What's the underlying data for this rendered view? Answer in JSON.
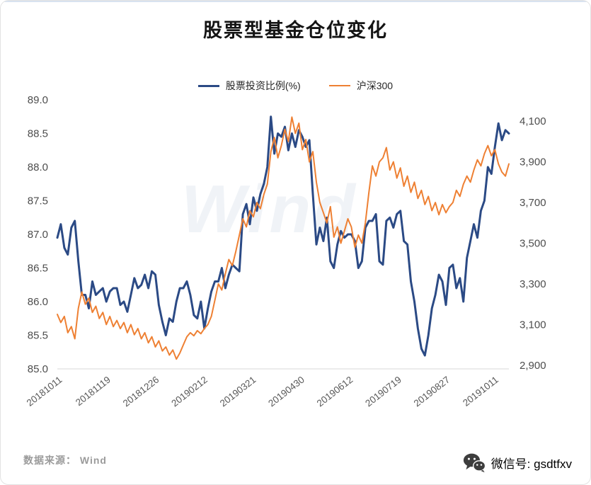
{
  "title": "股票型基金仓位变化",
  "watermark": "Wind",
  "footer": {
    "source_text": "数据来源： Wind"
  },
  "wechat": {
    "label": "微信号: gsdtfxv"
  },
  "chart_data": {
    "type": "line",
    "title": "股票型基金仓位变化",
    "xlabel": "",
    "legend_position": "top-center",
    "grid": false,
    "x_ticks": [
      "20181011",
      "20181119",
      "20181226",
      "20190212",
      "20190321",
      "20190430",
      "20190612",
      "20190719",
      "20190827",
      "20191011"
    ],
    "left_axis": {
      "label": "股票投资比例(%)",
      "min": 85.0,
      "max": 89.0,
      "ticks": [
        "89.0",
        "88.5",
        "88.0",
        "87.5",
        "87.0",
        "86.5",
        "86.0",
        "85.5",
        "85.0"
      ]
    },
    "right_axis": {
      "label": "沪深300",
      "min": 2882,
      "max": 4205,
      "ticks": [
        "4,100",
        "3,900",
        "3,700",
        "3,500",
        "3,300",
        "3,100",
        "2,900"
      ]
    },
    "series": [
      {
        "name": "股票投资比例(%)",
        "axis": "left",
        "color": "#2b4a85",
        "width": 3,
        "values": [
          86.95,
          87.15,
          86.8,
          86.7,
          87.1,
          87.2,
          86.6,
          86.1,
          86.1,
          85.9,
          86.3,
          86.1,
          86.15,
          86.2,
          86.0,
          86.15,
          86.2,
          86.2,
          85.95,
          86.0,
          85.85,
          86.1,
          86.35,
          86.2,
          86.25,
          86.4,
          86.2,
          86.45,
          86.4,
          85.95,
          85.7,
          85.5,
          85.75,
          85.7,
          86.0,
          86.2,
          86.2,
          86.3,
          86.1,
          85.8,
          85.75,
          86.0,
          85.6,
          85.9,
          86.15,
          86.3,
          86.3,
          86.5,
          86.2,
          86.4,
          86.55,
          86.5,
          86.45,
          87.3,
          87.45,
          87.15,
          87.55,
          87.35,
          87.6,
          87.75,
          88.0,
          88.75,
          88.2,
          88.5,
          88.45,
          88.6,
          88.25,
          88.5,
          88.3,
          88.55,
          88.45,
          88.3,
          88.4,
          87.6,
          86.85,
          87.1,
          86.9,
          87.25,
          86.6,
          86.5,
          86.85,
          87.05,
          86.95,
          87.0,
          87.0,
          86.9,
          86.5,
          86.6,
          87.1,
          87.2,
          87.2,
          87.3,
          86.6,
          86.55,
          87.2,
          87.25,
          87.1,
          87.3,
          87.35,
          86.9,
          86.85,
          86.3,
          86.0,
          85.6,
          85.3,
          85.2,
          85.5,
          85.9,
          86.1,
          86.4,
          86.3,
          85.95,
          86.5,
          86.55,
          86.2,
          86.35,
          86.0,
          86.65,
          86.9,
          87.15,
          86.95,
          87.35,
          87.5,
          88.0,
          87.9,
          88.3,
          88.65,
          88.4,
          88.55,
          88.5
        ]
      },
      {
        "name": "沪深300",
        "axis": "right",
        "color": "#ee8033",
        "width": 2,
        "values": [
          3150,
          3110,
          3140,
          3060,
          3090,
          3030,
          3180,
          3260,
          3200,
          3230,
          3160,
          3190,
          3130,
          3160,
          3100,
          3140,
          3090,
          3120,
          3080,
          3110,
          3060,
          3100,
          3050,
          3080,
          3030,
          3060,
          3010,
          3040,
          2990,
          3020,
          2970,
          2990,
          2950,
          2975,
          2930,
          2960,
          3000,
          3040,
          3060,
          3045,
          3070,
          3055,
          3080,
          3100,
          3140,
          3220,
          3300,
          3270,
          3350,
          3420,
          3390,
          3460,
          3540,
          3620,
          3580,
          3660,
          3630,
          3700,
          3670,
          3740,
          3790,
          3950,
          4020,
          3920,
          3980,
          4060,
          4000,
          4120,
          4040,
          4090,
          3960,
          4010,
          3900,
          3950,
          3800,
          3700,
          3650,
          3600,
          3680,
          3530,
          3580,
          3500,
          3560,
          3620,
          3580,
          3480,
          3540,
          3500,
          3600,
          3750,
          3880,
          3830,
          3900,
          3920,
          3970,
          3860,
          3900,
          3820,
          3870,
          3780,
          3830,
          3750,
          3800,
          3720,
          3760,
          3690,
          3730,
          3660,
          3700,
          3640,
          3690,
          3650,
          3680,
          3700,
          3760,
          3730,
          3790,
          3830,
          3800,
          3860,
          3910,
          3880,
          3940,
          3980,
          3930,
          3960,
          3890,
          3850,
          3830,
          3890
        ]
      }
    ]
  }
}
